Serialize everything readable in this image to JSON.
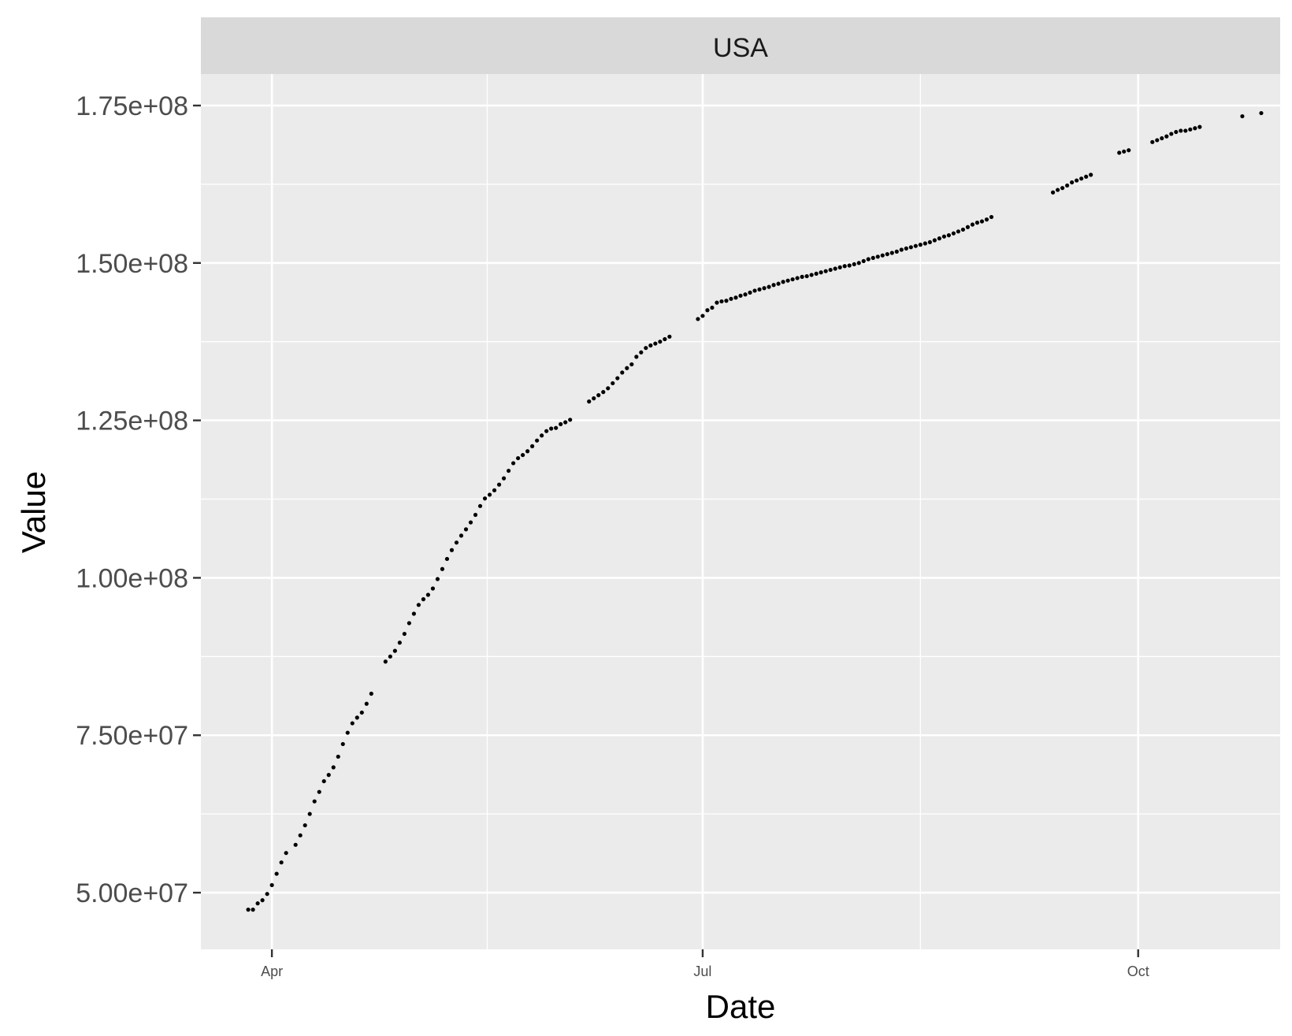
{
  "chart_data": {
    "type": "scatter",
    "facet_label": "USA",
    "xlabel": "Date",
    "ylabel": "Value",
    "x_ticks": [
      {
        "date": "2021-04-01",
        "label": "Apr"
      },
      {
        "date": "2021-07-01",
        "label": "Jul"
      },
      {
        "date": "2021-10-01",
        "label": "Oct"
      }
    ],
    "y_ticks": [
      {
        "value": 50000000,
        "label": "5.00e+07"
      },
      {
        "value": 75000000,
        "label": "7.50e+07"
      },
      {
        "value": 100000000,
        "label": "1.00e+08"
      },
      {
        "value": 125000000,
        "label": "1.25e+08"
      },
      {
        "value": 150000000,
        "label": "1.50e+08"
      },
      {
        "value": 175000000,
        "label": "1.75e+08"
      }
    ],
    "xlim": [
      "2021-03-17",
      "2021-10-31"
    ],
    "ylim": [
      41000000,
      180000000
    ],
    "grid": true,
    "colors": {
      "panel_background": "#ebebeb",
      "grid_major": "#ffffff",
      "strip_background": "#d9d9d9",
      "points": "#000000"
    },
    "series": [
      {
        "points": [
          [
            "2021-03-27",
            47300000
          ],
          [
            "2021-03-28",
            47300000
          ],
          [
            "2021-03-29",
            48300000
          ],
          [
            "2021-03-30",
            48800000
          ],
          [
            "2021-03-31",
            49800000
          ],
          [
            "2021-04-01",
            51200000
          ],
          [
            "2021-04-02",
            53000000
          ],
          [
            "2021-04-03",
            54800000
          ],
          [
            "2021-04-04",
            56300000
          ],
          [
            "2021-04-06",
            57600000
          ],
          [
            "2021-04-07",
            59100000
          ],
          [
            "2021-04-08",
            60700000
          ],
          [
            "2021-04-09",
            62500000
          ],
          [
            "2021-04-10",
            64500000
          ],
          [
            "2021-04-11",
            66000000
          ],
          [
            "2021-04-12",
            67700000
          ],
          [
            "2021-04-13",
            68700000
          ],
          [
            "2021-04-14",
            69900000
          ],
          [
            "2021-04-15",
            71600000
          ],
          [
            "2021-04-16",
            73600000
          ],
          [
            "2021-04-17",
            75400000
          ],
          [
            "2021-04-18",
            76900000
          ],
          [
            "2021-04-19",
            77800000
          ],
          [
            "2021-04-20",
            78600000
          ],
          [
            "2021-04-21",
            80000000
          ],
          [
            "2021-04-22",
            81600000
          ],
          [
            "2021-04-25",
            86700000
          ],
          [
            "2021-04-26",
            87500000
          ],
          [
            "2021-04-27",
            88400000
          ],
          [
            "2021-04-28",
            89700000
          ],
          [
            "2021-04-29",
            91100000
          ],
          [
            "2021-04-30",
            92800000
          ],
          [
            "2021-05-01",
            94300000
          ],
          [
            "2021-05-02",
            95700000
          ],
          [
            "2021-05-03",
            96600000
          ],
          [
            "2021-05-04",
            97300000
          ],
          [
            "2021-05-05",
            98300000
          ],
          [
            "2021-05-06",
            99800000
          ],
          [
            "2021-05-07",
            101400000
          ],
          [
            "2021-05-08",
            103000000
          ],
          [
            "2021-05-09",
            104400000
          ],
          [
            "2021-05-10",
            105600000
          ],
          [
            "2021-05-11",
            106700000
          ],
          [
            "2021-05-12",
            107700000
          ],
          [
            "2021-05-13",
            108800000
          ],
          [
            "2021-05-14",
            110000000
          ],
          [
            "2021-05-15",
            111400000
          ],
          [
            "2021-05-16",
            112600000
          ],
          [
            "2021-05-17",
            113200000
          ],
          [
            "2021-05-18",
            113900000
          ],
          [
            "2021-05-19",
            114800000
          ],
          [
            "2021-05-20",
            115800000
          ],
          [
            "2021-05-21",
            117000000
          ],
          [
            "2021-05-22",
            118200000
          ],
          [
            "2021-05-23",
            119000000
          ],
          [
            "2021-05-24",
            119500000
          ],
          [
            "2021-05-25",
            120100000
          ],
          [
            "2021-05-26",
            120900000
          ],
          [
            "2021-05-27",
            121800000
          ],
          [
            "2021-05-28",
            122600000
          ],
          [
            "2021-05-29",
            123300000
          ],
          [
            "2021-05-30",
            123700000
          ],
          [
            "2021-05-31",
            123800000
          ],
          [
            "2021-06-01",
            124400000
          ],
          [
            "2021-06-02",
            124700000
          ],
          [
            "2021-06-03",
            125100000
          ],
          [
            "2021-06-07",
            128000000
          ],
          [
            "2021-06-08",
            128500000
          ],
          [
            "2021-06-09",
            129000000
          ],
          [
            "2021-06-10",
            129500000
          ],
          [
            "2021-06-11",
            130100000
          ],
          [
            "2021-06-12",
            130900000
          ],
          [
            "2021-06-13",
            131700000
          ],
          [
            "2021-06-14",
            132600000
          ],
          [
            "2021-06-15",
            133300000
          ],
          [
            "2021-06-16",
            133900000
          ],
          [
            "2021-06-17",
            135100000
          ],
          [
            "2021-06-18",
            135800000
          ],
          [
            "2021-06-19",
            136500000
          ],
          [
            "2021-06-20",
            136900000
          ],
          [
            "2021-06-21",
            137200000
          ],
          [
            "2021-06-22",
            137500000
          ],
          [
            "2021-06-23",
            137900000
          ],
          [
            "2021-06-24",
            138300000
          ],
          [
            "2021-06-30",
            141100000
          ],
          [
            "2021-07-01",
            141600000
          ],
          [
            "2021-07-02",
            142500000
          ],
          [
            "2021-07-03",
            142900000
          ],
          [
            "2021-07-04",
            143700000
          ],
          [
            "2021-07-05",
            143900000
          ],
          [
            "2021-07-06",
            144000000
          ],
          [
            "2021-07-07",
            144300000
          ],
          [
            "2021-07-08",
            144500000
          ],
          [
            "2021-07-09",
            144800000
          ],
          [
            "2021-07-10",
            145000000
          ],
          [
            "2021-07-11",
            145300000
          ],
          [
            "2021-07-12",
            145600000
          ],
          [
            "2021-07-13",
            145800000
          ],
          [
            "2021-07-14",
            146000000
          ],
          [
            "2021-07-15",
            146200000
          ],
          [
            "2021-07-16",
            146500000
          ],
          [
            "2021-07-17",
            146700000
          ],
          [
            "2021-07-18",
            147000000
          ],
          [
            "2021-07-19",
            147200000
          ],
          [
            "2021-07-20",
            147400000
          ],
          [
            "2021-07-21",
            147600000
          ],
          [
            "2021-07-22",
            147800000
          ],
          [
            "2021-07-23",
            147900000
          ],
          [
            "2021-07-24",
            148100000
          ],
          [
            "2021-07-25",
            148300000
          ],
          [
            "2021-07-26",
            148500000
          ],
          [
            "2021-07-27",
            148700000
          ],
          [
            "2021-07-28",
            148900000
          ],
          [
            "2021-07-29",
            149100000
          ],
          [
            "2021-07-30",
            149300000
          ],
          [
            "2021-07-31",
            149500000
          ],
          [
            "2021-08-01",
            149600000
          ],
          [
            "2021-08-02",
            149800000
          ],
          [
            "2021-08-03",
            150000000
          ],
          [
            "2021-08-04",
            150300000
          ],
          [
            "2021-08-05",
            150600000
          ],
          [
            "2021-08-06",
            150800000
          ],
          [
            "2021-08-07",
            151000000
          ],
          [
            "2021-08-08",
            151200000
          ],
          [
            "2021-08-09",
            151400000
          ],
          [
            "2021-08-10",
            151600000
          ],
          [
            "2021-08-11",
            151800000
          ],
          [
            "2021-08-12",
            152100000
          ],
          [
            "2021-08-13",
            152300000
          ],
          [
            "2021-08-14",
            152500000
          ],
          [
            "2021-08-15",
            152700000
          ],
          [
            "2021-08-16",
            152900000
          ],
          [
            "2021-08-17",
            153100000
          ],
          [
            "2021-08-18",
            153300000
          ],
          [
            "2021-08-19",
            153600000
          ],
          [
            "2021-08-20",
            153900000
          ],
          [
            "2021-08-21",
            154200000
          ],
          [
            "2021-08-22",
            154400000
          ],
          [
            "2021-08-23",
            154700000
          ],
          [
            "2021-08-24",
            155000000
          ],
          [
            "2021-08-25",
            155300000
          ],
          [
            "2021-08-26",
            155700000
          ],
          [
            "2021-08-27",
            156100000
          ],
          [
            "2021-08-28",
            156400000
          ],
          [
            "2021-08-29",
            156600000
          ],
          [
            "2021-08-30",
            156900000
          ],
          [
            "2021-08-31",
            157300000
          ],
          [
            "2021-09-13",
            161200000
          ],
          [
            "2021-09-14",
            161600000
          ],
          [
            "2021-09-15",
            161900000
          ],
          [
            "2021-09-16",
            162300000
          ],
          [
            "2021-09-17",
            162800000
          ],
          [
            "2021-09-18",
            163100000
          ],
          [
            "2021-09-19",
            163400000
          ],
          [
            "2021-09-20",
            163700000
          ],
          [
            "2021-09-21",
            164000000
          ],
          [
            "2021-09-27",
            167500000
          ],
          [
            "2021-09-28",
            167700000
          ],
          [
            "2021-09-29",
            167900000
          ],
          [
            "2021-10-04",
            169200000
          ],
          [
            "2021-10-05",
            169500000
          ],
          [
            "2021-10-06",
            169800000
          ],
          [
            "2021-10-07",
            170100000
          ],
          [
            "2021-10-08",
            170500000
          ],
          [
            "2021-10-09",
            170800000
          ],
          [
            "2021-10-10",
            171000000
          ],
          [
            "2021-10-11",
            171000000
          ],
          [
            "2021-10-12",
            171200000
          ],
          [
            "2021-10-13",
            171400000
          ],
          [
            "2021-10-14",
            171600000
          ],
          [
            "2021-10-23",
            173300000
          ],
          [
            "2021-10-27",
            173800000
          ]
        ]
      }
    ]
  }
}
